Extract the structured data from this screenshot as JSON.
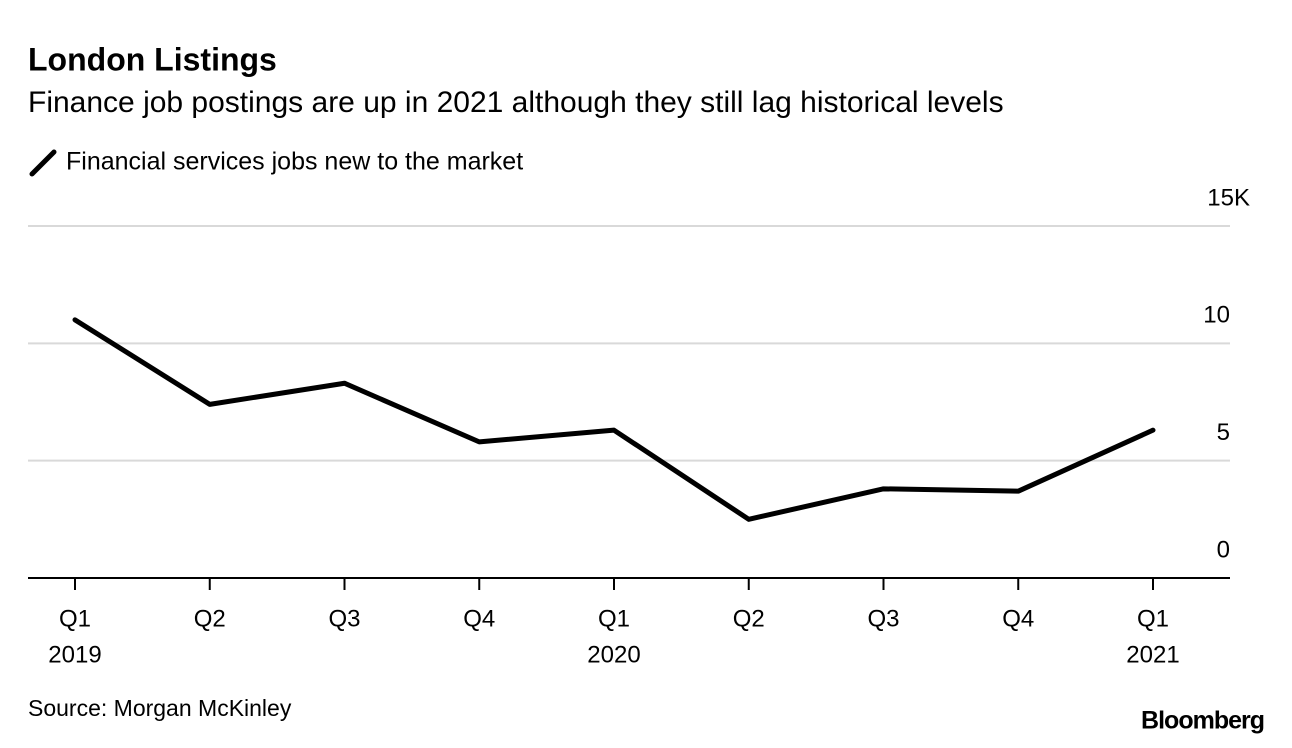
{
  "chart_data": {
    "type": "line",
    "title": "London Listings",
    "subtitle": "Finance job postings are up in 2021 although they still lag historical levels",
    "categories": [
      "Q1",
      "Q2",
      "Q3",
      "Q4",
      "Q1",
      "Q2",
      "Q3",
      "Q4",
      "Q1"
    ],
    "category_years": [
      "2019",
      null,
      null,
      null,
      "2020",
      null,
      null,
      null,
      "2021"
    ],
    "series": [
      {
        "name": "Financial services jobs new to the market",
        "color": "#000000",
        "values": [
          11.0,
          7.4,
          8.3,
          5.8,
          6.3,
          2.5,
          3.8,
          3.7,
          6.3
        ]
      }
    ],
    "ylim": [
      0,
      15
    ],
    "yticks": [
      0,
      5,
      10,
      {
        "value": 15,
        "label": "15K"
      }
    ],
    "grid": true,
    "source": "Source: Morgan McKinley",
    "brand": "Bloomberg"
  }
}
